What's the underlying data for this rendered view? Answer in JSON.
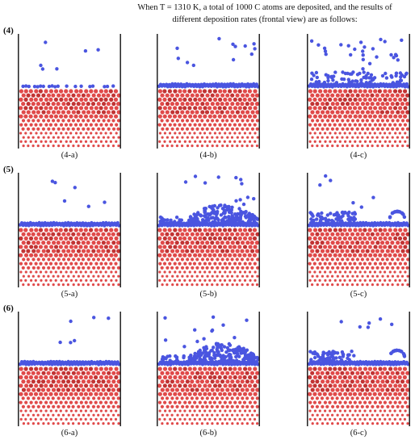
{
  "caption": {
    "line1": "When T = 1310 K, a total of 1000 C atoms are deposited, and the results of",
    "line2": "different deposition rates (frontal view) are as follows:"
  },
  "rows": [
    {
      "label": "(4)",
      "panels": [
        {
          "label": "(4-a)",
          "carbon_layer": "sparse",
          "scatter": "few"
        },
        {
          "label": "(4-b)",
          "carbon_layer": "thin",
          "scatter": "moderate"
        },
        {
          "label": "(4-c)",
          "carbon_layer": "thick",
          "scatter": "many"
        }
      ]
    },
    {
      "label": "(5)",
      "panels": [
        {
          "label": "(5-a)",
          "carbon_layer": "thin",
          "scatter": "few"
        },
        {
          "label": "(5-b)",
          "carbon_layer": "heap",
          "scatter": "moderate"
        },
        {
          "label": "(5-c)",
          "carbon_layer": "clusters",
          "scatter": "few"
        }
      ]
    },
    {
      "label": "(6)",
      "panels": [
        {
          "label": "(6-a)",
          "carbon_layer": "thin",
          "scatter": "few"
        },
        {
          "label": "(6-b)",
          "carbon_layer": "heap",
          "scatter": "moderate"
        },
        {
          "label": "(6-c)",
          "carbon_layer": "clusters",
          "scatter": "few"
        }
      ]
    }
  ],
  "colors": {
    "substrate_atom": "#e04a4a",
    "substrate_atom_dark": "#c23434",
    "carbon_atom": "#4a55e0",
    "wall": "#111111"
  }
}
